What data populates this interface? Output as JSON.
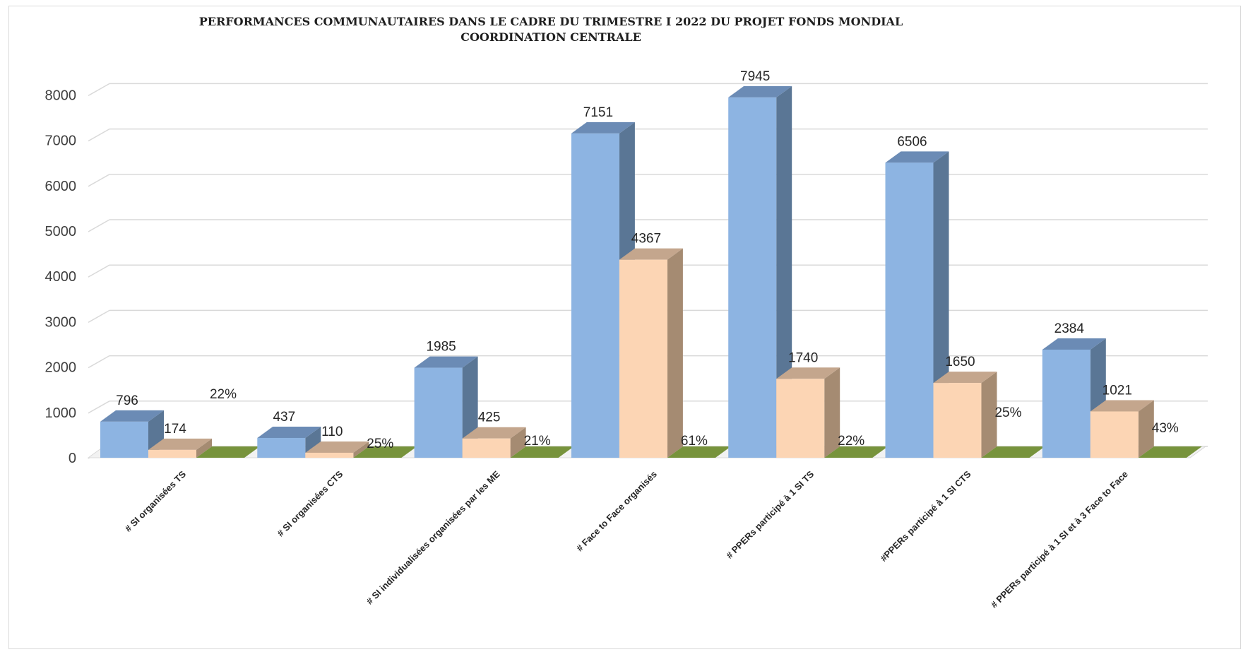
{
  "chart_data": {
    "type": "bar",
    "title_line1": "PERFORMANCES COMMUNAUTAIRES  DANS LE CADRE  DU TRIMESTRE I  2022 DU PROJET FONDS MONDIAL",
    "title_line2": "COORDINATION CENTRALE",
    "categories": [
      "# SI organisées TS",
      "# SI organisées CTS",
      "# SI individualisées organisées par les ME",
      "# Face to Face organisés",
      "# PPERs participé à 1 SI TS",
      "#PPERs participé à 1 SI CTS",
      "# PPERs participé à 1 SI et à 3 Face to Face"
    ],
    "series": [
      {
        "values": [
          796,
          437,
          1985,
          7151,
          7945,
          6506,
          2384
        ],
        "color": "#8db4e2",
        "side_color": "#5a7695",
        "top_color": "#6b8bb5"
      },
      {
        "values": [
          174,
          110,
          425,
          4367,
          1740,
          1650,
          1021
        ],
        "color": "#fcd5b4",
        "side_color": "#a58b72",
        "top_color": "#c4a68d"
      },
      {
        "values": [
          0,
          0,
          0,
          0,
          0,
          0,
          0
        ],
        "color": "#77933c",
        "side_color": "#4f6228",
        "top_color": "#6a8535"
      }
    ],
    "percent_labels": [
      "22%",
      "25%",
      "21%",
      "61%",
      "22%",
      "25%",
      "43%"
    ],
    "ylim": [
      0,
      8000
    ],
    "yticks": [
      0,
      1000,
      2000,
      3000,
      4000,
      5000,
      6000,
      7000,
      8000
    ],
    "grid": true,
    "legend": "none"
  }
}
